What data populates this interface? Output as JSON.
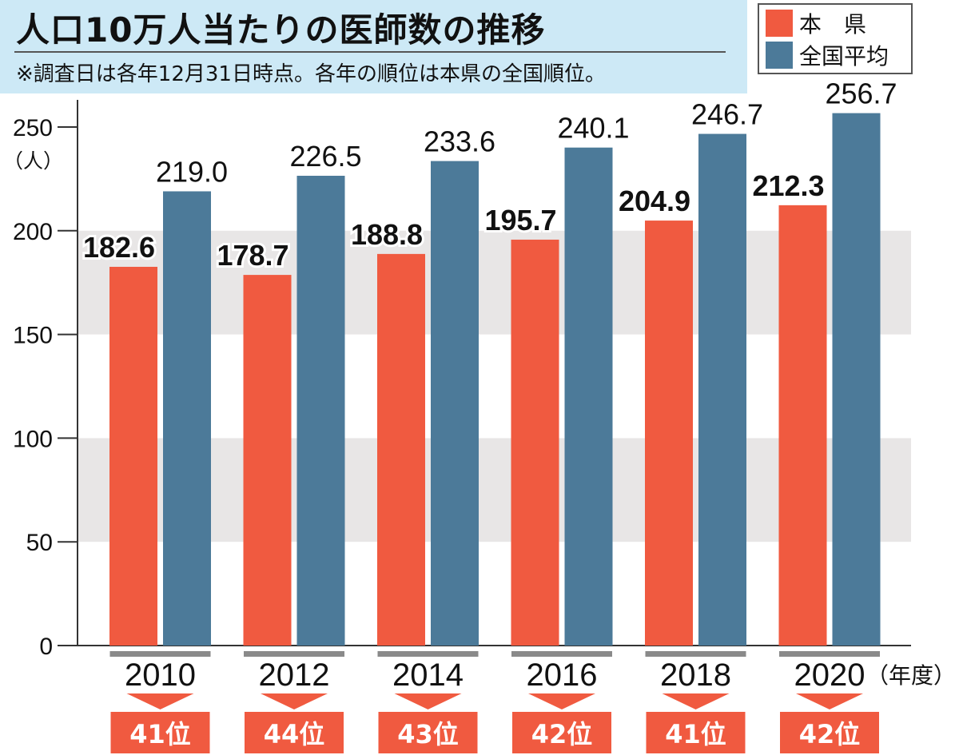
{
  "header": {
    "title": "人口10万人当たりの医師数の推移",
    "note": "※調査日は各年12月31日時点。各年の順位は本県の全国順位。"
  },
  "legend": {
    "items": [
      {
        "label": "本　県",
        "color": "#f05a40"
      },
      {
        "label": "全国平均",
        "color": "#4c7a99"
      }
    ]
  },
  "chart_data": {
    "type": "bar",
    "categories": [
      "2010",
      "2012",
      "2014",
      "2016",
      "2018",
      "2020"
    ],
    "series": [
      {
        "name": "本　県",
        "values": [
          182.6,
          178.7,
          188.8,
          195.7,
          204.9,
          212.3
        ],
        "color": "#f05a40"
      },
      {
        "name": "全国平均",
        "values": [
          219.0,
          226.5,
          233.6,
          240.1,
          246.7,
          256.7
        ],
        "color": "#4c7a99"
      }
    ],
    "data_labels": [
      [
        "182.6",
        "178.7",
        "188.8",
        "195.7",
        "204.9",
        "212.3"
      ],
      [
        "219.0",
        "226.5",
        "233.6",
        "240.1",
        "246.7",
        "256.7"
      ]
    ],
    "ylim": [
      0,
      250
    ],
    "yticks": [
      0,
      50,
      100,
      150,
      200,
      250
    ],
    "ylabel": "（人）",
    "xlabel": "（年度）",
    "ranks": [
      "41位",
      "44位",
      "43位",
      "42位",
      "41位",
      "42位"
    ],
    "rank_color": "#f05a40",
    "band_color": "#e8e6e6",
    "grid": "alternating-bands",
    "legend_position": "top-right"
  }
}
